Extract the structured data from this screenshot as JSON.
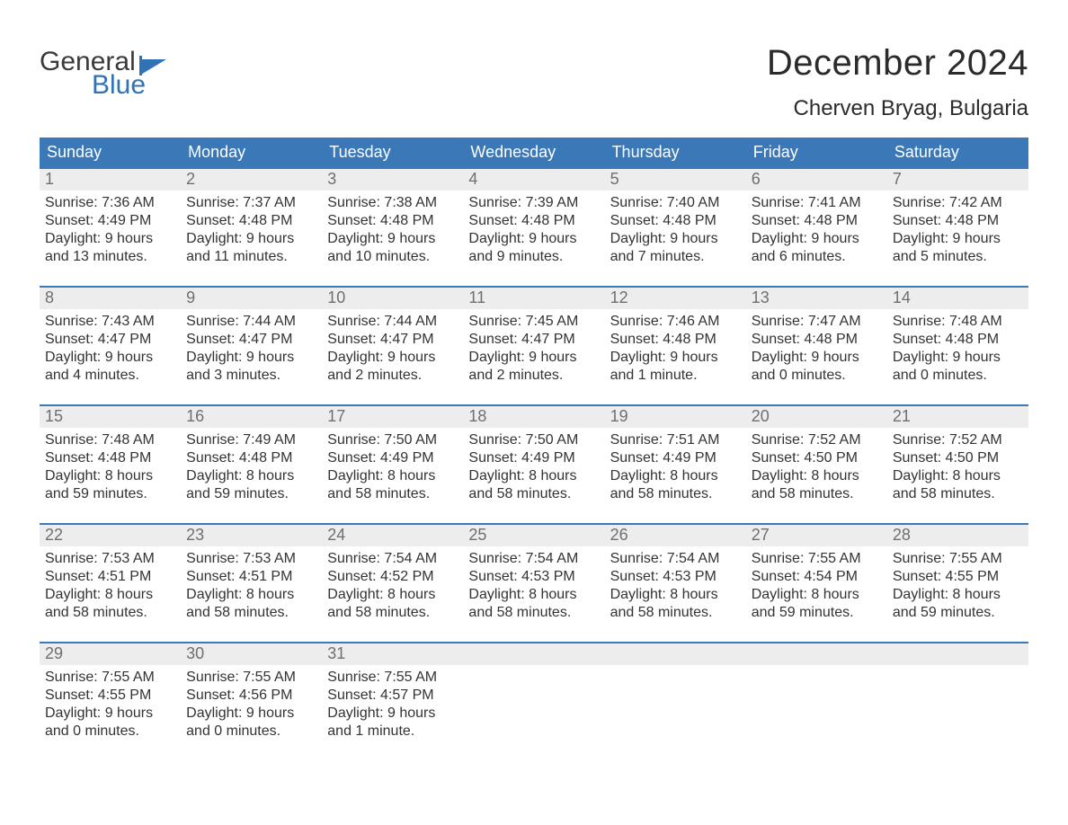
{
  "colors": {
    "header_bg": "#3b78b8",
    "header_text": "#ffffff",
    "row_separator": "#3b78b8",
    "daynum_bg": "#ededed",
    "daynum_text": "#6f6f6f",
    "body_text": "#333333",
    "page_bg": "#ffffff",
    "logo_gray": "#3a3a3a",
    "logo_blue": "#2f72b6"
  },
  "typography": {
    "month_title_fontsize": 40,
    "location_fontsize": 24,
    "weekday_fontsize": 18,
    "daynum_fontsize": 18,
    "body_fontsize": 16,
    "logo_fontsize": 30
  },
  "logo": {
    "word1": "General",
    "word2": "Blue"
  },
  "title": "December 2024",
  "location": "Cherven Bryag, Bulgaria",
  "weekdays": [
    "Sunday",
    "Monday",
    "Tuesday",
    "Wednesday",
    "Thursday",
    "Friday",
    "Saturday"
  ],
  "weeks": [
    [
      {
        "n": "1",
        "sunrise": "Sunrise: 7:36 AM",
        "sunset": "Sunset: 4:49 PM",
        "d1": "Daylight: 9 hours",
        "d2": "and 13 minutes."
      },
      {
        "n": "2",
        "sunrise": "Sunrise: 7:37 AM",
        "sunset": "Sunset: 4:48 PM",
        "d1": "Daylight: 9 hours",
        "d2": "and 11 minutes."
      },
      {
        "n": "3",
        "sunrise": "Sunrise: 7:38 AM",
        "sunset": "Sunset: 4:48 PM",
        "d1": "Daylight: 9 hours",
        "d2": "and 10 minutes."
      },
      {
        "n": "4",
        "sunrise": "Sunrise: 7:39 AM",
        "sunset": "Sunset: 4:48 PM",
        "d1": "Daylight: 9 hours",
        "d2": "and 9 minutes."
      },
      {
        "n": "5",
        "sunrise": "Sunrise: 7:40 AM",
        "sunset": "Sunset: 4:48 PM",
        "d1": "Daylight: 9 hours",
        "d2": "and 7 minutes."
      },
      {
        "n": "6",
        "sunrise": "Sunrise: 7:41 AM",
        "sunset": "Sunset: 4:48 PM",
        "d1": "Daylight: 9 hours",
        "d2": "and 6 minutes."
      },
      {
        "n": "7",
        "sunrise": "Sunrise: 7:42 AM",
        "sunset": "Sunset: 4:48 PM",
        "d1": "Daylight: 9 hours",
        "d2": "and 5 minutes."
      }
    ],
    [
      {
        "n": "8",
        "sunrise": "Sunrise: 7:43 AM",
        "sunset": "Sunset: 4:47 PM",
        "d1": "Daylight: 9 hours",
        "d2": "and 4 minutes."
      },
      {
        "n": "9",
        "sunrise": "Sunrise: 7:44 AM",
        "sunset": "Sunset: 4:47 PM",
        "d1": "Daylight: 9 hours",
        "d2": "and 3 minutes."
      },
      {
        "n": "10",
        "sunrise": "Sunrise: 7:44 AM",
        "sunset": "Sunset: 4:47 PM",
        "d1": "Daylight: 9 hours",
        "d2": "and 2 minutes."
      },
      {
        "n": "11",
        "sunrise": "Sunrise: 7:45 AM",
        "sunset": "Sunset: 4:47 PM",
        "d1": "Daylight: 9 hours",
        "d2": "and 2 minutes."
      },
      {
        "n": "12",
        "sunrise": "Sunrise: 7:46 AM",
        "sunset": "Sunset: 4:48 PM",
        "d1": "Daylight: 9 hours",
        "d2": "and 1 minute."
      },
      {
        "n": "13",
        "sunrise": "Sunrise: 7:47 AM",
        "sunset": "Sunset: 4:48 PM",
        "d1": "Daylight: 9 hours",
        "d2": "and 0 minutes."
      },
      {
        "n": "14",
        "sunrise": "Sunrise: 7:48 AM",
        "sunset": "Sunset: 4:48 PM",
        "d1": "Daylight: 9 hours",
        "d2": "and 0 minutes."
      }
    ],
    [
      {
        "n": "15",
        "sunrise": "Sunrise: 7:48 AM",
        "sunset": "Sunset: 4:48 PM",
        "d1": "Daylight: 8 hours",
        "d2": "and 59 minutes."
      },
      {
        "n": "16",
        "sunrise": "Sunrise: 7:49 AM",
        "sunset": "Sunset: 4:48 PM",
        "d1": "Daylight: 8 hours",
        "d2": "and 59 minutes."
      },
      {
        "n": "17",
        "sunrise": "Sunrise: 7:50 AM",
        "sunset": "Sunset: 4:49 PM",
        "d1": "Daylight: 8 hours",
        "d2": "and 58 minutes."
      },
      {
        "n": "18",
        "sunrise": "Sunrise: 7:50 AM",
        "sunset": "Sunset: 4:49 PM",
        "d1": "Daylight: 8 hours",
        "d2": "and 58 minutes."
      },
      {
        "n": "19",
        "sunrise": "Sunrise: 7:51 AM",
        "sunset": "Sunset: 4:49 PM",
        "d1": "Daylight: 8 hours",
        "d2": "and 58 minutes."
      },
      {
        "n": "20",
        "sunrise": "Sunrise: 7:52 AM",
        "sunset": "Sunset: 4:50 PM",
        "d1": "Daylight: 8 hours",
        "d2": "and 58 minutes."
      },
      {
        "n": "21",
        "sunrise": "Sunrise: 7:52 AM",
        "sunset": "Sunset: 4:50 PM",
        "d1": "Daylight: 8 hours",
        "d2": "and 58 minutes."
      }
    ],
    [
      {
        "n": "22",
        "sunrise": "Sunrise: 7:53 AM",
        "sunset": "Sunset: 4:51 PM",
        "d1": "Daylight: 8 hours",
        "d2": "and 58 minutes."
      },
      {
        "n": "23",
        "sunrise": "Sunrise: 7:53 AM",
        "sunset": "Sunset: 4:51 PM",
        "d1": "Daylight: 8 hours",
        "d2": "and 58 minutes."
      },
      {
        "n": "24",
        "sunrise": "Sunrise: 7:54 AM",
        "sunset": "Sunset: 4:52 PM",
        "d1": "Daylight: 8 hours",
        "d2": "and 58 minutes."
      },
      {
        "n": "25",
        "sunrise": "Sunrise: 7:54 AM",
        "sunset": "Sunset: 4:53 PM",
        "d1": "Daylight: 8 hours",
        "d2": "and 58 minutes."
      },
      {
        "n": "26",
        "sunrise": "Sunrise: 7:54 AM",
        "sunset": "Sunset: 4:53 PM",
        "d1": "Daylight: 8 hours",
        "d2": "and 58 minutes."
      },
      {
        "n": "27",
        "sunrise": "Sunrise: 7:55 AM",
        "sunset": "Sunset: 4:54 PM",
        "d1": "Daylight: 8 hours",
        "d2": "and 59 minutes."
      },
      {
        "n": "28",
        "sunrise": "Sunrise: 7:55 AM",
        "sunset": "Sunset: 4:55 PM",
        "d1": "Daylight: 8 hours",
        "d2": "and 59 minutes."
      }
    ],
    [
      {
        "n": "29",
        "sunrise": "Sunrise: 7:55 AM",
        "sunset": "Sunset: 4:55 PM",
        "d1": "Daylight: 9 hours",
        "d2": "and 0 minutes."
      },
      {
        "n": "30",
        "sunrise": "Sunrise: 7:55 AM",
        "sunset": "Sunset: 4:56 PM",
        "d1": "Daylight: 9 hours",
        "d2": "and 0 minutes."
      },
      {
        "n": "31",
        "sunrise": "Sunrise: 7:55 AM",
        "sunset": "Sunset: 4:57 PM",
        "d1": "Daylight: 9 hours",
        "d2": "and 1 minute."
      },
      null,
      null,
      null,
      null
    ]
  ]
}
